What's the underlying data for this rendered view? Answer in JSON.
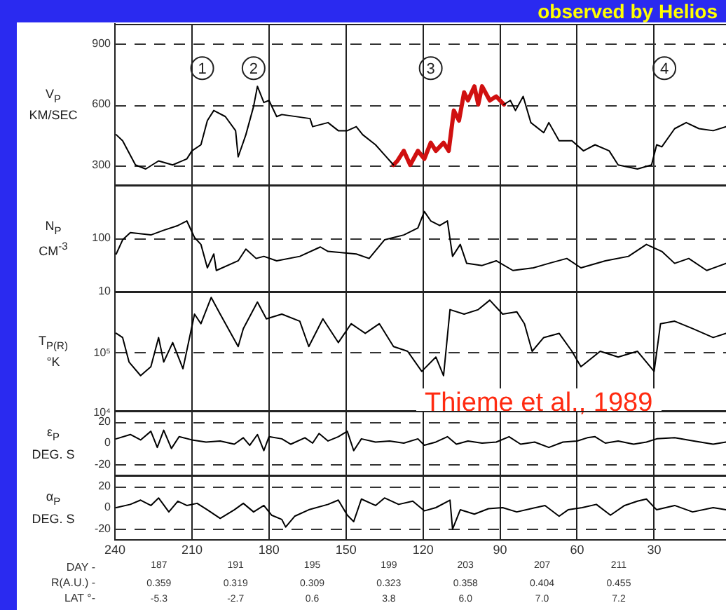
{
  "chart_data": [
    {
      "type": "line",
      "title": "observed by Helios",
      "ylabel": "V$_{P}$\nKM/SEC",
      "xlim": [
        240,
        2
      ],
      "xticks": [
        240,
        210,
        180,
        150,
        120,
        90,
        60,
        30
      ],
      "ylim": [
        200,
        1000
      ],
      "yticks": [
        300,
        600,
        900
      ],
      "grid": true,
      "tick_labels": "y",
      "series": [
        {
          "color": "#000000",
          "x": [
            239.5,
            237,
            232,
            228,
            223,
            217.5,
            212,
            210,
            206.5,
            204,
            201.5,
            197,
            193,
            192,
            189,
            186,
            184.5,
            182,
            180,
            177,
            175,
            164,
            163,
            157,
            153,
            149.5,
            146,
            143.5,
            138.5,
            135,
            131.5,
            110,
            88.5,
            86,
            84,
            81,
            78,
            73,
            71,
            67,
            62,
            57.5,
            53,
            47.5,
            44,
            36.5,
            31,
            29,
            27,
            22,
            17.5,
            12.5,
            7,
            2
          ],
          "values": [
            450,
            420,
            300,
            280,
            320,
            300,
            330,
            370,
            400,
            520,
            570,
            540,
            470,
            340,
            450,
            590,
            690,
            610,
            620,
            540,
            550,
            530,
            490,
            510,
            470,
            470,
            490,
            450,
            400,
            350,
            300,
            null,
            600,
            620,
            570,
            640,
            510,
            460,
            510,
            420,
            420,
            370,
            400,
            370,
            300,
            280,
            300,
            400,
            390,
            480,
            510,
            480,
            470,
            490
          ]
        },
        {
          "color": "#d01010",
          "x": [
            131.5,
            130,
            127.5,
            125,
            122,
            119.5,
            117,
            115,
            112,
            110,
            108,
            106,
            104,
            102.5,
            100,
            98.5,
            97,
            94,
            91.5,
            88.5
          ],
          "values": [
            300,
            320,
            370,
            300,
            370,
            330,
            410,
            370,
            410,
            370,
            570,
            520,
            660,
            620,
            690,
            600,
            690,
            620,
            640,
            600
          ]
        }
      ],
      "annotations": [
        {
          "text": "1",
          "x": 206,
          "y": 780
        },
        {
          "text": "2",
          "x": 186,
          "y": 780
        },
        {
          "text": "3",
          "x": 117,
          "y": 780
        },
        {
          "text": "4",
          "x": 26,
          "y": 780
        }
      ]
    },
    {
      "type": "line",
      "ylabel": "N$_{P}$\nCM$^{-3}$",
      "xlim": [
        240,
        2
      ],
      "xticks": [
        240,
        210,
        180,
        150,
        120,
        90,
        60,
        30
      ],
      "ylim": [
        10,
        1000
      ],
      "yticks": [
        10,
        100
      ],
      "log": true,
      "grid": "x",
      "tick_labels": "y",
      "ref_lines": [
        {
          "axis": "y",
          "value": 100,
          "line_style": "dashed"
        }
      ],
      "series": [
        {
          "color": "#000000",
          "x": [
            239.5,
            237,
            234,
            226,
            221,
            215.5,
            212,
            209,
            206.5,
            204,
            201.5,
            200.5,
            192,
            189,
            185,
            182,
            177,
            168,
            160,
            157,
            146,
            141,
            135,
            127.5,
            122,
            119.5,
            117,
            113.5,
            110.5,
            108.5,
            105.5,
            103,
            97,
            91.5,
            85,
            77,
            71,
            64,
            58.5,
            49,
            40,
            33,
            27,
            22,
            16.5,
            9.5,
            2
          ],
          "values": [
            51,
            94,
            128,
            116,
            142,
            174,
            213,
            104,
            77,
            28,
            51,
            25,
            38,
            63,
            42,
            46,
            38,
            46,
            69,
            57,
            51,
            42,
            94,
            116,
            157,
            320,
            213,
            174,
            213,
            46,
            77,
            34,
            31,
            38,
            25,
            28,
            34,
            42,
            28,
            38,
            46,
            77,
            57,
            34,
            42,
            25,
            34
          ]
        }
      ]
    },
    {
      "type": "line",
      "ylabel": "T$_{P(R)}$\n°K",
      "xlim": [
        240,
        2
      ],
      "xticks": [
        240,
        210,
        180,
        150,
        120,
        90,
        60,
        30
      ],
      "ylim": [
        10000,
        1000000
      ],
      "yticks": [
        {
          "value": 10000,
          "label": "10⁴"
        },
        {
          "value": 100000,
          "label": "10⁵"
        }
      ],
      "log": true,
      "grid": "x",
      "tick_labels": "y",
      "ref_lines": [
        {
          "axis": "y",
          "value": 100000,
          "line_style": "dashed"
        }
      ],
      "series": [
        {
          "color": "#000000",
          "x": [
            239.5,
            237,
            234.5,
            230,
            226,
            223,
            221,
            217.5,
            213.5,
            209,
            206.5,
            202.5,
            199,
            192,
            190,
            184.5,
            181,
            175,
            168,
            164.5,
            159,
            153,
            148,
            142.5,
            137,
            131.5,
            126,
            120.5,
            115,
            112,
            109.5,
            104,
            98.5,
            94,
            89,
            83.5,
            80.5,
            77.5,
            73,
            67,
            62,
            58.5,
            51,
            44,
            36.5,
            30,
            27.5,
            22,
            15,
            7,
            2
          ],
          "values": [
            200000,
            170000,
            66000,
            39000,
            55000,
            170000,
            66000,
            140000,
            51000,
            420000,
            290000,
            800000,
            420000,
            120000,
            240000,
            670000,
            350000,
            420000,
            320000,
            120000,
            350000,
            140000,
            290000,
            200000,
            290000,
            120000,
            100000,
            46000,
            80000,
            39000,
            500000,
            420000,
            500000,
            720000,
            420000,
            460000,
            290000,
            100000,
            170000,
            200000,
            100000,
            55000,
            100000,
            80000,
            100000,
            46000,
            290000,
            320000,
            240000,
            170000,
            200000
          ]
        }
      ],
      "annotations": [
        "Thieme et al., 1989"
      ]
    },
    {
      "type": "line",
      "ylabel": "ε$_{P}$\nDEG. S",
      "xlim": [
        240,
        2
      ],
      "xticks": [
        240,
        210,
        180,
        150,
        120,
        90,
        60,
        30
      ],
      "ylim": [
        -30,
        30
      ],
      "yticks": [
        -20,
        0,
        20
      ],
      "grid": "x",
      "tick_labels": "y",
      "ref_lines": [
        {
          "axis": "y",
          "value": 20,
          "line_style": "dashed"
        },
        {
          "axis": "y",
          "value": -20,
          "line_style": "dashed"
        }
      ],
      "series": [
        {
          "color": "#000000",
          "x": [
            239.5,
            234,
            230,
            226,
            223.5,
            221,
            218,
            215,
            210,
            204.5,
            199,
            193.5,
            190,
            187.5,
            184.5,
            182,
            180,
            175,
            171.5,
            166,
            163,
            160.5,
            157,
            153,
            149.5,
            147,
            144,
            138.5,
            133,
            127.5,
            122,
            119.5,
            115,
            110.5,
            107,
            102.5,
            97,
            91.5,
            86.5,
            82,
            76.5,
            71,
            65.5,
            60,
            56,
            53,
            49,
            44,
            38,
            33,
            29,
            22,
            14.5,
            7,
            2
          ],
          "values": [
            4,
            8,
            3,
            11,
            -4,
            12,
            -5,
            6,
            3,
            1,
            2,
            -1,
            5,
            -2,
            8,
            -7,
            6,
            4,
            -1,
            5,
            0,
            9,
            2,
            6,
            11,
            -7,
            4,
            1,
            2,
            0,
            4,
            -2,
            1,
            6,
            -1,
            2,
            0,
            1,
            6,
            -1,
            1,
            -4,
            1,
            2,
            5,
            6,
            0,
            2,
            -1,
            1,
            4,
            5,
            2,
            -1,
            1
          ]
        }
      ]
    },
    {
      "type": "line",
      "ylabel": "α$_{P}$\nDEG. S",
      "xlim": [
        240,
        2
      ],
      "xticks": [
        240,
        210,
        180,
        150,
        120,
        90,
        60,
        30
      ],
      "ylim": [
        -30,
        30
      ],
      "yticks": [
        -20,
        0,
        20
      ],
      "grid": "x",
      "ref_lines": [
        {
          "axis": "y",
          "value": 20,
          "line_style": "dashed"
        },
        {
          "axis": "y",
          "value": -20,
          "line_style": "dashed"
        }
      ],
      "x2label": "DAY -",
      "x2lim": [
        184.7,
        216.6
      ],
      "x2ticks": [
        187,
        191,
        195,
        199,
        203,
        207,
        211
      ],
      "annotations": [
        "R(A.U.) -",
        "0.359",
        "0.319",
        "0.309",
        "0.323",
        "0.358",
        "0.404",
        "0.455",
        "LAT °-",
        "-5.3",
        "-2.7",
        "0.6",
        "3.8",
        "6.0",
        "7.0",
        "7.2"
      ],
      "series": [
        {
          "color": "#000000",
          "x": [
            239.5,
            234,
            230,
            226,
            223,
            219,
            215.5,
            212,
            208,
            204,
            199,
            193.5,
            190,
            186,
            182,
            179,
            175,
            173.5,
            170,
            164.5,
            157,
            153,
            149.5,
            147,
            144,
            138.5,
            135,
            129.5,
            124,
            119.5,
            115,
            109.5,
            108.5,
            105.5,
            100,
            94.5,
            89,
            83.5,
            78,
            72.5,
            67,
            63.5,
            58,
            52.5,
            47,
            41.5,
            36.5,
            33,
            29,
            22,
            15,
            7,
            2
          ],
          "values": [
            0,
            3,
            7,
            2,
            9,
            -4,
            6,
            2,
            4,
            -2,
            -10,
            -2,
            4,
            -4,
            2,
            -7,
            -11,
            -18,
            -8,
            -2,
            3,
            7,
            -7,
            -13,
            8,
            2,
            9,
            3,
            6,
            -3,
            0,
            7,
            -20,
            -2,
            -6,
            -1,
            0,
            -4,
            -1,
            2,
            -8,
            -2,
            0,
            3,
            -7,
            2,
            6,
            8,
            -2,
            2,
            -4,
            0,
            -2
          ]
        }
      ]
    }
  ]
}
